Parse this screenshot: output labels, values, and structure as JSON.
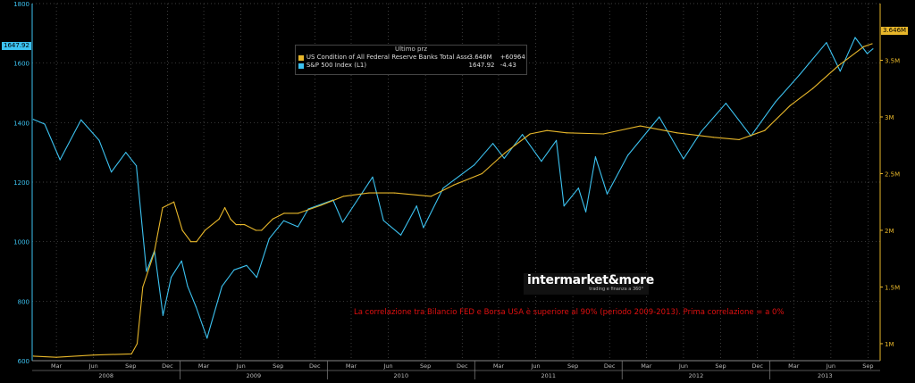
{
  "chart_data": {
    "type": "line",
    "legend": {
      "header": "Ultimo prz",
      "placement": "top-center",
      "entries": [
        {
          "label": "US Condition of All Federal Reserve Banks Total Assets  (R1)",
          "value": "3.646M",
          "change": "+60964",
          "color": "#e8b72a"
        },
        {
          "label": "S&P 500 Index  (L1)",
          "value": "1647.92",
          "change": "-4.43",
          "color": "#3cc2f0"
        }
      ]
    },
    "left_axis": {
      "ticks": [
        "1800",
        "1600",
        "1400",
        "1200",
        "1000",
        "800",
        "600"
      ],
      "ylim": [
        600,
        1800
      ]
    },
    "right_axis": {
      "ticks": [
        "3.5M",
        "3M",
        "2.5M",
        "2M",
        "1.5M",
        "1M"
      ],
      "ylim": [
        0.85,
        4.0
      ],
      "unit": "M"
    },
    "x_axis": {
      "months": [
        "Mar",
        "Jun",
        "Sep",
        "Dec",
        "Mar",
        "Jun",
        "Sep",
        "Dec",
        "Mar",
        "Jun",
        "Sep",
        "Dec",
        "Mar",
        "Jun",
        "Sep",
        "Dec",
        "Mar",
        "Jun",
        "Sep",
        "Dec",
        "Mar",
        "Jun",
        "Sep"
      ],
      "years": [
        "2008",
        "2009",
        "2010",
        "2011",
        "2012",
        "2013"
      ],
      "xlim": [
        "2008-01-01",
        "2013-10-01"
      ]
    },
    "series": [
      {
        "name": "S&P 500 Index",
        "axis": "left",
        "color": "#3cc2f0",
        "x": [
          "2008-01-04",
          "2008-02-01",
          "2008-03-10",
          "2008-05-01",
          "2008-06-15",
          "2008-07-15",
          "2008-08-20",
          "2008-09-15",
          "2008-10-10",
          "2008-10-30",
          "2008-11-20",
          "2008-12-10",
          "2009-01-05",
          "2009-01-20",
          "2009-02-10",
          "2009-03-09",
          "2009-04-15",
          "2009-05-15",
          "2009-06-15",
          "2009-07-10",
          "2009-08-10",
          "2009-09-15",
          "2009-10-20",
          "2009-11-15",
          "2010-01-15",
          "2010-02-08",
          "2010-04-23",
          "2010-05-20",
          "2010-07-02",
          "2010-08-10",
          "2010-08-27",
          "2010-10-15",
          "2010-12-31",
          "2011-02-15",
          "2011-03-15",
          "2011-04-29",
          "2011-06-15",
          "2011-07-22",
          "2011-08-10",
          "2011-09-15",
          "2011-10-03",
          "2011-10-27",
          "2011-11-25",
          "2012-01-15",
          "2012-04-02",
          "2012-06-01",
          "2012-07-15",
          "2012-09-14",
          "2012-11-15",
          "2013-01-15",
          "2013-03-15",
          "2013-05-21",
          "2013-06-24",
          "2013-07-31",
          "2013-08-30",
          "2013-09-13"
        ],
        "values": [
          1411,
          1395,
          1275,
          1409,
          1340,
          1234,
          1300,
          1255,
          900,
          970,
          752,
          880,
          935,
          850,
          780,
          676,
          850,
          905,
          920,
          880,
          1010,
          1070,
          1050,
          1110,
          1140,
          1065,
          1217,
          1071,
          1022,
          1120,
          1047,
          1180,
          1258,
          1330,
          1280,
          1360,
          1270,
          1340,
          1120,
          1180,
          1100,
          1285,
          1160,
          1290,
          1419,
          1278,
          1370,
          1465,
          1355,
          1470,
          1560,
          1669,
          1573,
          1686,
          1632,
          1648
        ]
      },
      {
        "name": "US Condition of All Federal Reserve Banks Total Assets",
        "axis": "right",
        "color": "#e8b72a",
        "x": [
          "2008-01-04",
          "2008-03-01",
          "2008-06-01",
          "2008-09-03",
          "2008-09-17",
          "2008-10-01",
          "2008-10-29",
          "2008-11-19",
          "2008-12-17",
          "2009-01-07",
          "2009-01-28",
          "2009-02-11",
          "2009-03-04",
          "2009-04-08",
          "2009-04-22",
          "2009-05-06",
          "2009-05-20",
          "2009-06-10",
          "2009-07-08",
          "2009-07-22",
          "2009-08-19",
          "2009-09-16",
          "2009-10-21",
          "2009-12-16",
          "2010-02-10",
          "2010-04-14",
          "2010-06-16",
          "2010-09-15",
          "2010-11-10",
          "2011-01-19",
          "2011-03-16",
          "2011-05-18",
          "2011-06-29",
          "2011-08-17",
          "2011-11-16",
          "2012-02-15",
          "2012-05-16",
          "2012-08-15",
          "2012-10-17",
          "2012-12-19",
          "2013-02-20",
          "2013-04-17",
          "2013-06-19",
          "2013-08-21",
          "2013-09-11"
        ],
        "values": [
          0.89,
          0.88,
          0.9,
          0.91,
          1.0,
          1.5,
          1.8,
          2.2,
          2.25,
          2.0,
          1.9,
          1.9,
          2.0,
          2.1,
          2.2,
          2.1,
          2.05,
          2.05,
          2.0,
          2.0,
          2.1,
          2.15,
          2.15,
          2.22,
          2.3,
          2.33,
          2.33,
          2.3,
          2.4,
          2.5,
          2.68,
          2.85,
          2.88,
          2.86,
          2.85,
          2.92,
          2.86,
          2.82,
          2.8,
          2.88,
          3.1,
          3.25,
          3.45,
          3.62,
          3.646
        ]
      }
    ],
    "last_values": {
      "left": "1647.92",
      "right": "3.646M"
    },
    "annotation": "La correlazione tra Bilancio FED e Borsa USA è superiore al 90% (periodo 2009-2013). Prima correlazione = a 0%",
    "brand": {
      "name": "intermarket&more",
      "tagline": "trading e finanza a 360°"
    },
    "colors": {
      "background": "#000000",
      "grid": "#555555",
      "sp500": "#3cc2f0",
      "fed": "#e8b72a",
      "annotation": "#e01010"
    }
  }
}
